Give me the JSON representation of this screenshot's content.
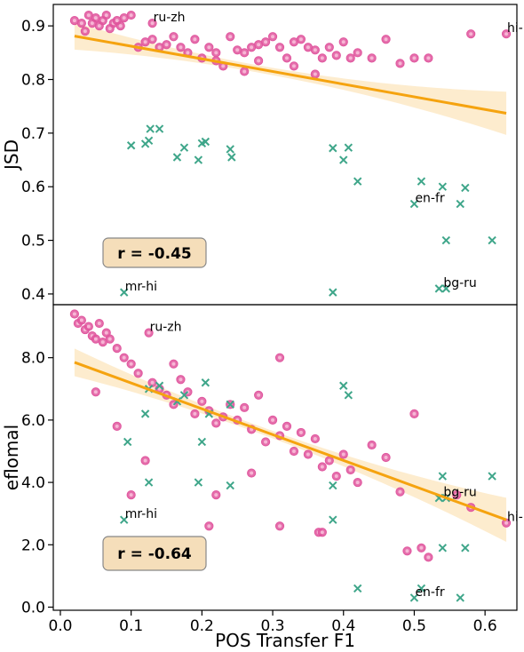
{
  "chart_data": [
    {
      "type": "scatter",
      "ylabel": "JSD",
      "xlim": [
        -0.01,
        0.645
      ],
      "ylim": [
        0.38,
        0.94
      ],
      "yticks": [
        "0.4",
        "0.5",
        "0.6",
        "0.7",
        "0.8",
        "0.9"
      ],
      "yticks_values": [
        0.4,
        0.5,
        0.6,
        0.7,
        0.8,
        0.9
      ],
      "correlation_label": "r = -0.45",
      "trend": {
        "x": [
          0.02,
          0.63
        ],
        "y": [
          0.881,
          0.737
        ]
      },
      "series": [
        {
          "marker": "circle",
          "color": "#e0569e",
          "points": [
            [
              0.02,
              0.91
            ],
            [
              0.03,
              0.905
            ],
            [
              0.035,
              0.89
            ],
            [
              0.04,
              0.92
            ],
            [
              0.045,
              0.905
            ],
            [
              0.05,
              0.915
            ],
            [
              0.055,
              0.9
            ],
            [
              0.06,
              0.91
            ],
            [
              0.065,
              0.92
            ],
            [
              0.07,
              0.895
            ],
            [
              0.075,
              0.905
            ],
            [
              0.08,
              0.91
            ],
            [
              0.085,
              0.9
            ],
            [
              0.09,
              0.915
            ],
            [
              0.1,
              0.92
            ],
            [
              0.11,
              0.86
            ],
            [
              0.12,
              0.87
            ],
            [
              0.13,
              0.875
            ],
            [
              0.14,
              0.86
            ],
            [
              0.15,
              0.865
            ],
            [
              0.16,
              0.88
            ],
            [
              0.17,
              0.86
            ],
            [
              0.18,
              0.85
            ],
            [
              0.19,
              0.875
            ],
            [
              0.2,
              0.84
            ],
            [
              0.21,
              0.86
            ],
            [
              0.22,
              0.85
            ],
            [
              0.23,
              0.825
            ],
            [
              0.24,
              0.88
            ],
            [
              0.25,
              0.855
            ],
            [
              0.26,
              0.85
            ],
            [
              0.27,
              0.86
            ],
            [
              0.28,
              0.865
            ],
            [
              0.29,
              0.87
            ],
            [
              0.3,
              0.88
            ],
            [
              0.31,
              0.86
            ],
            [
              0.32,
              0.84
            ],
            [
              0.33,
              0.87
            ],
            [
              0.34,
              0.875
            ],
            [
              0.35,
              0.86
            ],
            [
              0.36,
              0.855
            ],
            [
              0.37,
              0.84
            ],
            [
              0.38,
              0.86
            ],
            [
              0.39,
              0.845
            ],
            [
              0.4,
              0.87
            ],
            [
              0.41,
              0.84
            ],
            [
              0.42,
              0.85
            ],
            [
              0.44,
              0.84
            ],
            [
              0.46,
              0.875
            ],
            [
              0.48,
              0.83
            ],
            [
              0.5,
              0.84
            ],
            [
              0.52,
              0.84
            ],
            [
              0.58,
              0.885
            ],
            [
              0.63,
              0.885
            ],
            [
              0.13,
              0.905
            ],
            [
              0.26,
              0.815
            ],
            [
              0.36,
              0.81
            ],
            [
              0.28,
              0.835
            ],
            [
              0.33,
              0.825
            ],
            [
              0.22,
              0.835
            ]
          ]
        },
        {
          "marker": "x",
          "color": "#3fa68a",
          "points": [
            [
              0.1,
              0.677
            ],
            [
              0.12,
              0.68
            ],
            [
              0.125,
              0.686
            ],
            [
              0.127,
              0.708
            ],
            [
              0.14,
              0.708
            ],
            [
              0.165,
              0.655
            ],
            [
              0.175,
              0.673
            ],
            [
              0.195,
              0.65
            ],
            [
              0.2,
              0.681
            ],
            [
              0.205,
              0.684
            ],
            [
              0.24,
              0.67
            ],
            [
              0.242,
              0.655
            ],
            [
              0.385,
              0.672
            ],
            [
              0.4,
              0.65
            ],
            [
              0.407,
              0.673
            ],
            [
              0.42,
              0.61
            ],
            [
              0.5,
              0.568
            ],
            [
              0.51,
              0.61
            ],
            [
              0.54,
              0.6
            ],
            [
              0.565,
              0.568
            ],
            [
              0.572,
              0.598
            ],
            [
              0.545,
              0.5
            ],
            [
              0.61,
              0.5
            ],
            [
              0.09,
              0.403
            ],
            [
              0.385,
              0.403
            ],
            [
              0.535,
              0.41
            ],
            [
              0.545,
              0.41
            ]
          ]
        }
      ],
      "annotations": [
        {
          "text": "ru-zh",
          "x": 0.13,
          "y": 0.905
        },
        {
          "text": "hi-ur",
          "x": 0.63,
          "y": 0.885
        },
        {
          "text": "en-fr",
          "x": 0.5,
          "y": 0.568
        },
        {
          "text": "bg-ru",
          "x": 0.54,
          "y": 0.41
        },
        {
          "text": "mr-hi",
          "x": 0.09,
          "y": 0.403
        }
      ]
    },
    {
      "type": "scatter",
      "ylabel": "eflomal",
      "xlabel": "POS Transfer F1",
      "xlim": [
        -0.01,
        0.645
      ],
      "ylim": [
        -0.1,
        9.7
      ],
      "xticks": [
        "0.0",
        "0.1",
        "0.2",
        "0.3",
        "0.4",
        "0.5",
        "0.6"
      ],
      "xticks_values": [
        0.0,
        0.1,
        0.2,
        0.3,
        0.4,
        0.5,
        0.6
      ],
      "yticks": [
        "0.0",
        "2.0",
        "4.0",
        "6.0",
        "8.0"
      ],
      "yticks_values": [
        0.0,
        2.0,
        4.0,
        6.0,
        8.0
      ],
      "correlation_label": "r = -0.64",
      "trend": {
        "x": [
          0.02,
          0.63
        ],
        "y": [
          7.85,
          2.8
        ]
      },
      "series": [
        {
          "marker": "circle",
          "color": "#e0569e",
          "points": [
            [
              0.02,
              9.4
            ],
            [
              0.025,
              9.1
            ],
            [
              0.03,
              9.2
            ],
            [
              0.035,
              8.9
            ],
            [
              0.04,
              9.0
            ],
            [
              0.045,
              8.7
            ],
            [
              0.05,
              8.6
            ],
            [
              0.055,
              9.1
            ],
            [
              0.06,
              8.5
            ],
            [
              0.065,
              8.8
            ],
            [
              0.07,
              8.6
            ],
            [
              0.08,
              8.3
            ],
            [
              0.09,
              8.0
            ],
            [
              0.1,
              7.8
            ],
            [
              0.11,
              7.5
            ],
            [
              0.125,
              8.8
            ],
            [
              0.13,
              7.2
            ],
            [
              0.14,
              7.0
            ],
            [
              0.15,
              6.8
            ],
            [
              0.16,
              6.5
            ],
            [
              0.17,
              7.3
            ],
            [
              0.18,
              6.9
            ],
            [
              0.19,
              6.2
            ],
            [
              0.2,
              6.6
            ],
            [
              0.21,
              6.3
            ],
            [
              0.22,
              5.9
            ],
            [
              0.23,
              6.1
            ],
            [
              0.24,
              6.5
            ],
            [
              0.25,
              6.0
            ],
            [
              0.26,
              6.4
            ],
            [
              0.27,
              5.7
            ],
            [
              0.28,
              6.8
            ],
            [
              0.29,
              5.3
            ],
            [
              0.3,
              6.0
            ],
            [
              0.31,
              5.5
            ],
            [
              0.32,
              5.8
            ],
            [
              0.33,
              5.0
            ],
            [
              0.34,
              5.6
            ],
            [
              0.35,
              4.9
            ],
            [
              0.36,
              5.4
            ],
            [
              0.37,
              4.5
            ],
            [
              0.38,
              4.7
            ],
            [
              0.39,
              4.2
            ],
            [
              0.4,
              4.9
            ],
            [
              0.41,
              4.4
            ],
            [
              0.42,
              4.0
            ],
            [
              0.44,
              5.2
            ],
            [
              0.46,
              4.8
            ],
            [
              0.48,
              3.7
            ],
            [
              0.5,
              6.2
            ],
            [
              0.49,
              1.8
            ],
            [
              0.51,
              1.9
            ],
            [
              0.52,
              1.6
            ],
            [
              0.56,
              3.6
            ],
            [
              0.58,
              3.2
            ],
            [
              0.63,
              2.7
            ],
            [
              0.1,
              3.6
            ],
            [
              0.12,
              4.7
            ],
            [
              0.31,
              8.0
            ],
            [
              0.21,
              2.6
            ],
            [
              0.31,
              2.6
            ],
            [
              0.365,
              2.4
            ],
            [
              0.37,
              2.4
            ],
            [
              0.16,
              7.8
            ],
            [
              0.08,
              5.8
            ],
            [
              0.05,
              6.9
            ],
            [
              0.22,
              3.6
            ],
            [
              0.27,
              4.3
            ]
          ]
        },
        {
          "marker": "x",
          "color": "#3fa68a",
          "points": [
            [
              0.095,
              5.3
            ],
            [
              0.12,
              6.2
            ],
            [
              0.125,
              7.0
            ],
            [
              0.125,
              4.0
            ],
            [
              0.14,
              7.1
            ],
            [
              0.165,
              6.6
            ],
            [
              0.175,
              6.8
            ],
            [
              0.195,
              4.0
            ],
            [
              0.2,
              5.3
            ],
            [
              0.205,
              7.2
            ],
            [
              0.21,
              6.2
            ],
            [
              0.24,
              6.5
            ],
            [
              0.24,
              3.9
            ],
            [
              0.385,
              3.9
            ],
            [
              0.4,
              7.1
            ],
            [
              0.407,
              6.8
            ],
            [
              0.42,
              0.6
            ],
            [
              0.5,
              0.3
            ],
            [
              0.51,
              0.6
            ],
            [
              0.54,
              4.2
            ],
            [
              0.535,
              3.5
            ],
            [
              0.545,
              3.5
            ],
            [
              0.565,
              0.3
            ],
            [
              0.572,
              1.9
            ],
            [
              0.61,
              4.2
            ],
            [
              0.09,
              2.8
            ],
            [
              0.385,
              2.8
            ],
            [
              0.54,
              1.9
            ]
          ]
        }
      ],
      "annotations": [
        {
          "text": "ru-zh",
          "x": 0.125,
          "y": 8.8
        },
        {
          "text": "mr-hi",
          "x": 0.09,
          "y": 2.8
        },
        {
          "text": "bg-ru",
          "x": 0.54,
          "y": 3.5
        },
        {
          "text": "hi-ur",
          "x": 0.63,
          "y": 2.7
        },
        {
          "text": "en-fr",
          "x": 0.5,
          "y": 0.3
        }
      ]
    }
  ]
}
